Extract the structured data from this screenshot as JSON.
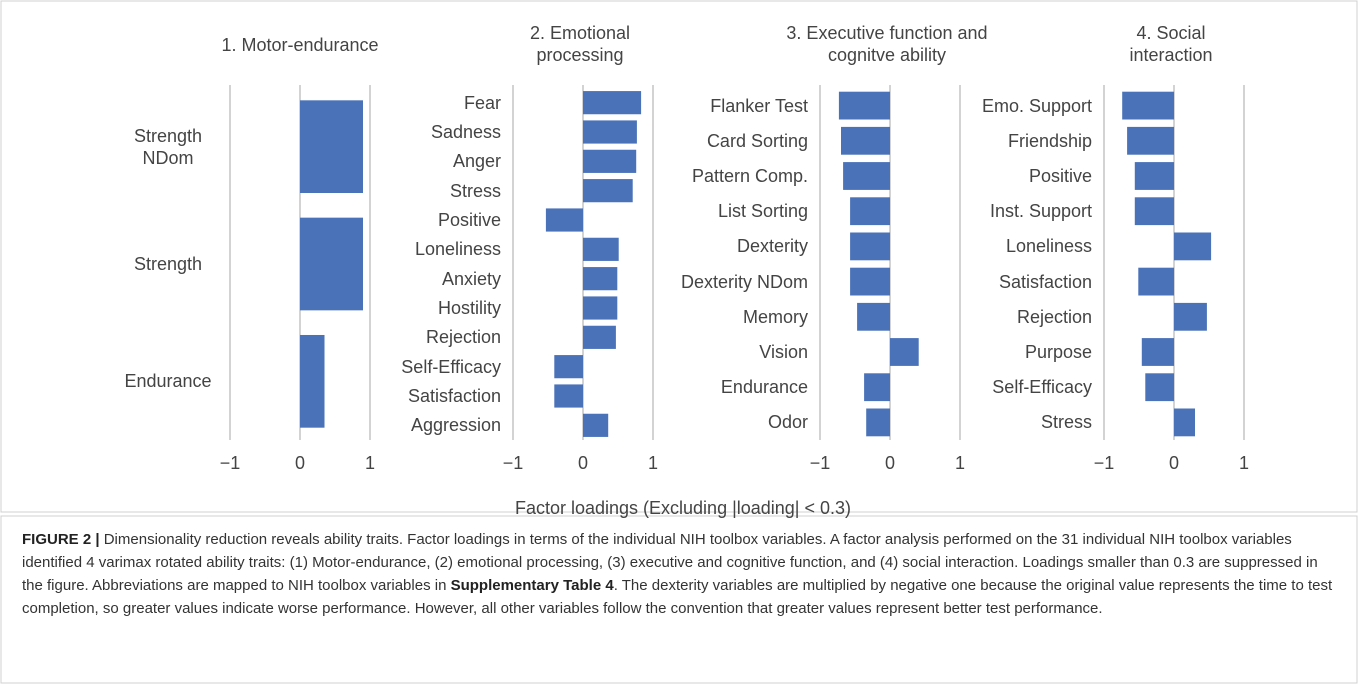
{
  "chart_data": [
    {
      "type": "barh",
      "title": "1. Motor-endurance",
      "color": "#4a72b8",
      "categories": [
        "Strength NDom",
        "Strength",
        "Endurance"
      ],
      "values": [
        0.9,
        0.9,
        0.35
      ],
      "xlim": [
        -1,
        1
      ],
      "xticks": [
        {
          "value": -1,
          "label": "−1"
        },
        0,
        1
      ],
      "grid": true
    },
    {
      "type": "barh",
      "title": "2. Emotional processing",
      "color": "#4a72b8",
      "categories": [
        "Fear",
        "Sadness",
        "Anger",
        "Stress",
        "Positive",
        "Loneliness",
        "Anxiety",
        "Hostility",
        "Rejection",
        "Self-Efficacy",
        "Satisfaction",
        "Aggression"
      ],
      "values": [
        0.83,
        0.77,
        0.76,
        0.71,
        -0.53,
        0.51,
        0.49,
        0.49,
        0.47,
        -0.41,
        -0.41,
        0.36
      ],
      "xlim": [
        -1,
        1
      ],
      "xticks": [
        {
          "value": -1,
          "label": "−1"
        },
        0,
        1
      ],
      "grid": true
    },
    {
      "type": "barh",
      "title": "3. Executive function and cognitve ability",
      "color": "#4a72b8",
      "categories": [
        "Flanker Test",
        "Card Sorting",
        "Pattern Comp.",
        "List Sorting",
        "Dexterity",
        "Dexterity NDom",
        "Memory",
        "Vision",
        "Endurance",
        "Odor"
      ],
      "values": [
        -0.73,
        -0.7,
        -0.67,
        -0.57,
        -0.57,
        -0.57,
        -0.47,
        0.41,
        -0.37,
        -0.34
      ],
      "xlim": [
        -1,
        1
      ],
      "xticks": [
        {
          "value": -1,
          "label": "−1"
        },
        0,
        1
      ],
      "grid": true
    },
    {
      "type": "barh",
      "title": "4. Social interaction",
      "color": "#4a72b8",
      "categories": [
        "Emo. Support",
        "Friendship",
        "Positive",
        "Inst. Support",
        "Loneliness",
        "Satisfaction",
        "Rejection",
        "Purpose",
        "Self-Efficacy",
        "Stress"
      ],
      "values": [
        -0.74,
        -0.67,
        -0.56,
        -0.56,
        0.53,
        -0.51,
        0.47,
        -0.46,
        -0.41,
        0.3
      ],
      "xlim": [
        -1,
        1
      ],
      "xticks": [
        {
          "value": -1,
          "label": "−1"
        },
        0,
        1
      ],
      "grid": true
    }
  ],
  "xlabel": "Factor loadings (Excluding |loading| < 0.3)",
  "caption": {
    "label": "FIGURE 2 |",
    "text": [
      "Dimensionality reduction reveals ability traits. Factor loadings in terms of the individual NIH toolbox variables. A factor analysis performed on the 31 individual NIH toolbox variables identified 4 varimax rotated ability traits: (1) Motor-endurance, (2) emotional processing, (3) executive and cognitive function, and (4) social interaction. Loadings smaller than 0.3 are suppressed in the figure. Abbreviations are mapped to NIH toolbox variables in ",
      "Supplementary Table 4",
      ". The dexterity variables are multiplied by negative one because the original value represents the time to test completion, so greater values indicate worse performance. However, all other variables follow the convention that greater values represent better test performance."
    ]
  }
}
